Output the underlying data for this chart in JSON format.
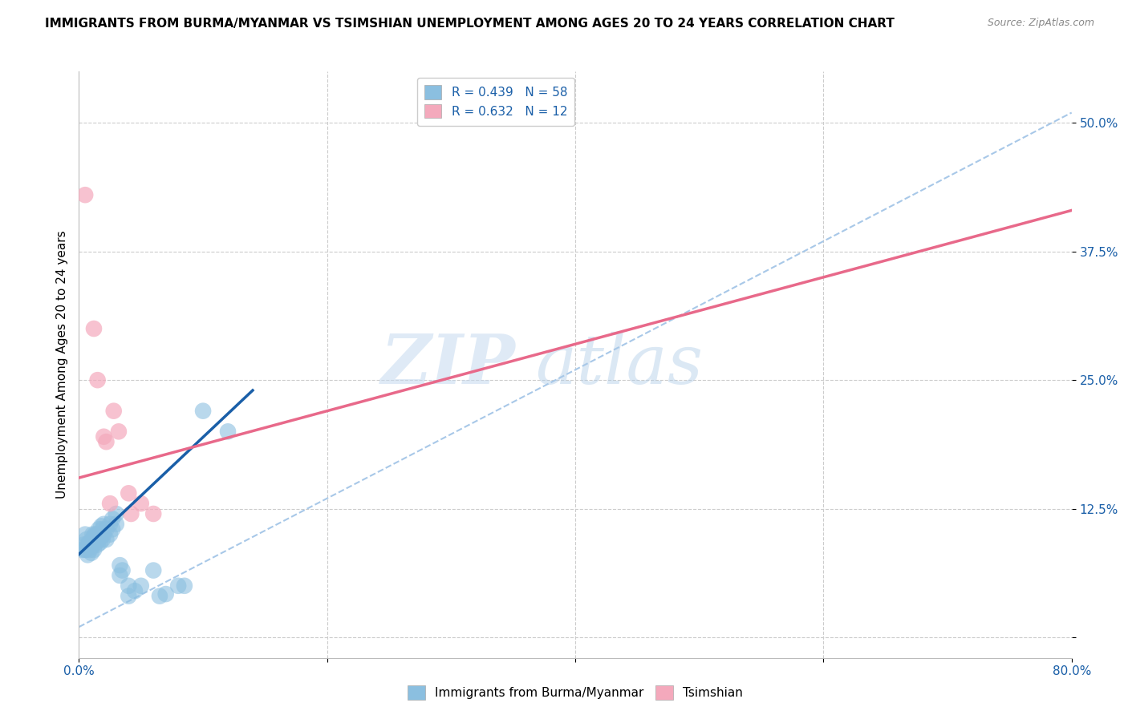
{
  "title": "IMMIGRANTS FROM BURMA/MYANMAR VS TSIMSHIAN UNEMPLOYMENT AMONG AGES 20 TO 24 YEARS CORRELATION CHART",
  "source": "Source: ZipAtlas.com",
  "ylabel": "Unemployment Among Ages 20 to 24 years",
  "xlim": [
    0.0,
    0.8
  ],
  "ylim": [
    -0.02,
    0.55
  ],
  "xticks": [
    0.0,
    0.2,
    0.4,
    0.6,
    0.8
  ],
  "xticklabels": [
    "0.0%",
    "",
    "",
    "",
    "80.0%"
  ],
  "yticks": [
    0.0,
    0.125,
    0.25,
    0.375,
    0.5
  ],
  "yticklabels": [
    "",
    "12.5%",
    "25.0%",
    "37.5%",
    "50.0%"
  ],
  "blue_R": 0.439,
  "blue_N": 58,
  "pink_R": 0.632,
  "pink_N": 12,
  "blue_color": "#8bbfe0",
  "pink_color": "#f4a9bc",
  "blue_line_color": "#1a5fa8",
  "pink_line_color": "#e8698a",
  "dashed_line_color": "#a8c8e8",
  "watermark_zip": "ZIP",
  "watermark_atlas": "atlas",
  "legend_label_blue": "Immigrants from Burma/Myanmar",
  "legend_label_pink": "Tsimshian",
  "blue_scatter": [
    [
      0.003,
      0.085
    ],
    [
      0.004,
      0.09
    ],
    [
      0.005,
      0.1
    ],
    [
      0.005,
      0.085
    ],
    [
      0.006,
      0.095
    ],
    [
      0.006,
      0.085
    ],
    [
      0.007,
      0.09
    ],
    [
      0.007,
      0.08
    ],
    [
      0.008,
      0.088
    ],
    [
      0.008,
      0.092
    ],
    [
      0.009,
      0.09
    ],
    [
      0.009,
      0.085
    ],
    [
      0.01,
      0.093
    ],
    [
      0.01,
      0.088
    ],
    [
      0.01,
      0.082
    ],
    [
      0.011,
      0.1
    ],
    [
      0.011,
      0.095
    ],
    [
      0.012,
      0.098
    ],
    [
      0.012,
      0.092
    ],
    [
      0.012,
      0.085
    ],
    [
      0.013,
      0.1
    ],
    [
      0.013,
      0.095
    ],
    [
      0.014,
      0.098
    ],
    [
      0.014,
      0.092
    ],
    [
      0.015,
      0.1
    ],
    [
      0.015,
      0.09
    ],
    [
      0.016,
      0.105
    ],
    [
      0.016,
      0.095
    ],
    [
      0.017,
      0.1
    ],
    [
      0.017,
      0.092
    ],
    [
      0.018,
      0.108
    ],
    [
      0.018,
      0.098
    ],
    [
      0.019,
      0.105
    ],
    [
      0.019,
      0.095
    ],
    [
      0.02,
      0.11
    ],
    [
      0.02,
      0.1
    ],
    [
      0.022,
      0.105
    ],
    [
      0.022,
      0.095
    ],
    [
      0.025,
      0.11
    ],
    [
      0.025,
      0.1
    ],
    [
      0.027,
      0.115
    ],
    [
      0.027,
      0.105
    ],
    [
      0.03,
      0.12
    ],
    [
      0.03,
      0.11
    ],
    [
      0.033,
      0.07
    ],
    [
      0.033,
      0.06
    ],
    [
      0.035,
      0.065
    ],
    [
      0.04,
      0.05
    ],
    [
      0.04,
      0.04
    ],
    [
      0.045,
      0.045
    ],
    [
      0.05,
      0.05
    ],
    [
      0.06,
      0.065
    ],
    [
      0.065,
      0.04
    ],
    [
      0.07,
      0.042
    ],
    [
      0.08,
      0.05
    ],
    [
      0.085,
      0.05
    ],
    [
      0.1,
      0.22
    ],
    [
      0.12,
      0.2
    ]
  ],
  "pink_scatter": [
    [
      0.005,
      0.43
    ],
    [
      0.012,
      0.3
    ],
    [
      0.015,
      0.25
    ],
    [
      0.02,
      0.195
    ],
    [
      0.022,
      0.19
    ],
    [
      0.028,
      0.22
    ],
    [
      0.032,
      0.2
    ],
    [
      0.04,
      0.14
    ],
    [
      0.042,
      0.12
    ],
    [
      0.05,
      0.13
    ],
    [
      0.06,
      0.12
    ],
    [
      0.025,
      0.13
    ]
  ],
  "blue_trendline_x": [
    -0.005,
    0.14
  ],
  "blue_trendline_y": [
    0.075,
    0.24
  ],
  "pink_trendline_x": [
    0.0,
    0.8
  ],
  "pink_trendline_y": [
    0.155,
    0.415
  ],
  "dashed_trendline_x": [
    0.0,
    0.8
  ],
  "dashed_trendline_y": [
    0.01,
    0.51
  ]
}
